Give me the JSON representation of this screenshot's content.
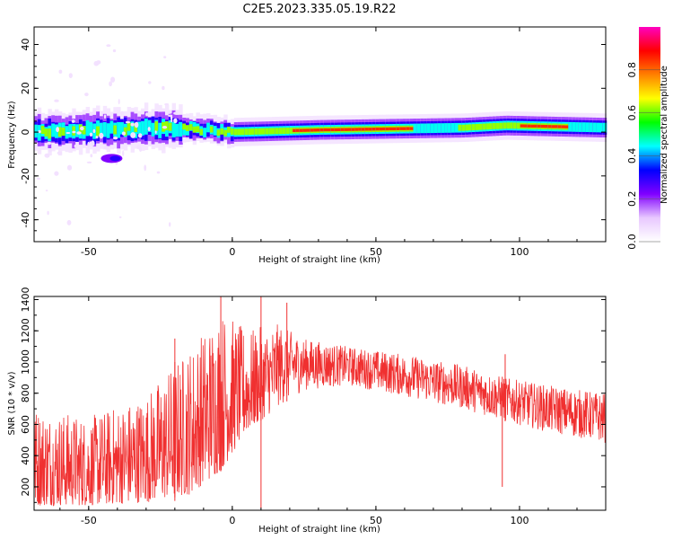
{
  "title": "C2E5.2023.335.05.19.R22",
  "chart_data": [
    {
      "type": "heatmap",
      "name": "spectrogram",
      "xlabel": "Height of straight line (km)",
      "ylabel": "Frequency (Hz)",
      "xlim": [
        -69,
        130
      ],
      "ylim": [
        -50,
        48
      ],
      "xticks": [
        -50,
        0,
        50,
        100
      ],
      "yticks": [
        -40,
        -20,
        0,
        20,
        40
      ],
      "colorbar": {
        "label": "Normalized spectral amplitude",
        "range": [
          0.0,
          1.0
        ],
        "ticks": [
          "0.0",
          "0.2",
          "0.4",
          "0.6",
          "0.8"
        ],
        "tick_values": [
          0.0,
          0.2,
          0.4,
          0.6,
          0.8
        ],
        "colors": [
          "#ffffff",
          "#e8c8ff",
          "#8000ff",
          "#0000ff",
          "#00ffff",
          "#00ff00",
          "#ffff00",
          "#ff8000",
          "#ff0000",
          "#ff00c0"
        ]
      },
      "band_center_hz": [
        {
          "x": -69,
          "y": 0
        },
        {
          "x": -20,
          "y": 2
        },
        {
          "x": 0,
          "y": 0
        },
        {
          "x": 30,
          "y": 1
        },
        {
          "x": 80,
          "y": 2
        },
        {
          "x": 95,
          "y": 3
        },
        {
          "x": 130,
          "y": 2
        }
      ],
      "features": [
        {
          "desc": "high amplitude core",
          "x_range": [
            20,
            60
          ],
          "freq": 1,
          "amp": 0.9
        },
        {
          "desc": "high amplitude core",
          "x_range": [
            100,
            115
          ],
          "freq": 1,
          "amp": 0.9
        },
        {
          "desc": "scattered blob",
          "x": -42,
          "freq": -12,
          "amp": 0.3
        }
      ]
    },
    {
      "type": "line",
      "name": "snr",
      "xlabel": "Height of straight line (km)",
      "ylabel": "SNR (10 * v/v)",
      "xlim": [
        -69,
        130
      ],
      "ylim": [
        50,
        1420
      ],
      "xticks": [
        -50,
        0,
        50,
        100
      ],
      "yticks": [
        200,
        400,
        600,
        800,
        1000,
        1200,
        1400
      ],
      "color": "#f03030",
      "envelope": [
        {
          "x": -69,
          "lo": 80,
          "hi": 720
        },
        {
          "x": -50,
          "lo": 80,
          "hi": 650
        },
        {
          "x": -30,
          "lo": 100,
          "hi": 800
        },
        {
          "x": -15,
          "lo": 150,
          "hi": 1100
        },
        {
          "x": -4,
          "lo": 300,
          "hi": 1350
        },
        {
          "x": 5,
          "lo": 550,
          "hi": 1200
        },
        {
          "x": 15,
          "lo": 700,
          "hi": 1250
        },
        {
          "x": 25,
          "lo": 820,
          "hi": 1150
        },
        {
          "x": 40,
          "lo": 850,
          "hi": 1100
        },
        {
          "x": 60,
          "lo": 780,
          "hi": 1050
        },
        {
          "x": 80,
          "lo": 700,
          "hi": 980
        },
        {
          "x": 95,
          "lo": 620,
          "hi": 900
        },
        {
          "x": 110,
          "lo": 550,
          "hi": 850
        },
        {
          "x": 130,
          "lo": 480,
          "hi": 800
        }
      ],
      "spikes": [
        {
          "x": -4,
          "y": 1420
        },
        {
          "x": -20,
          "y": 1150
        },
        {
          "x": 10,
          "y": 1420
        },
        {
          "x": 19,
          "y": 1380
        },
        {
          "x": 95,
          "y": 1050
        }
      ],
      "dips": [
        {
          "x": 10,
          "y": 60
        },
        {
          "x": 94,
          "y": 200
        },
        {
          "x": -20,
          "y": 110
        }
      ]
    }
  ]
}
